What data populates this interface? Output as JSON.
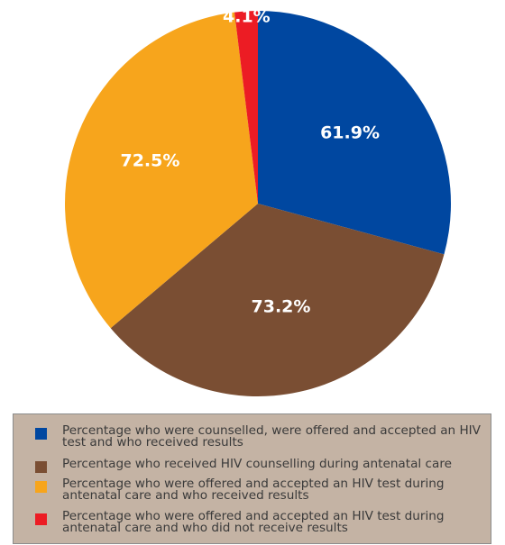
{
  "chart_data": {
    "type": "pie",
    "title": "",
    "slices": [
      {
        "label": "61.9%",
        "value": 61.9,
        "color": "#0047a0",
        "legend": "Percentage who were counselled, were offered and accepted an HIV test and who received results"
      },
      {
        "label": "73.2%",
        "value": 73.2,
        "color": "#7a4e33",
        "legend": "Percentage who received HIV counselling during antenatal care"
      },
      {
        "label": "72.5%",
        "value": 72.5,
        "color": "#f7a51c",
        "legend": "Percentage who were offered and accepted an HIV test during antenatal care and who received results"
      },
      {
        "label": "4.1%",
        "value": 4.1,
        "color": "#ec1c24",
        "legend": "Percentage who were offered and accepted an HIV test during antenatal care and who did not receive results"
      }
    ],
    "legend_position": "bottom"
  }
}
